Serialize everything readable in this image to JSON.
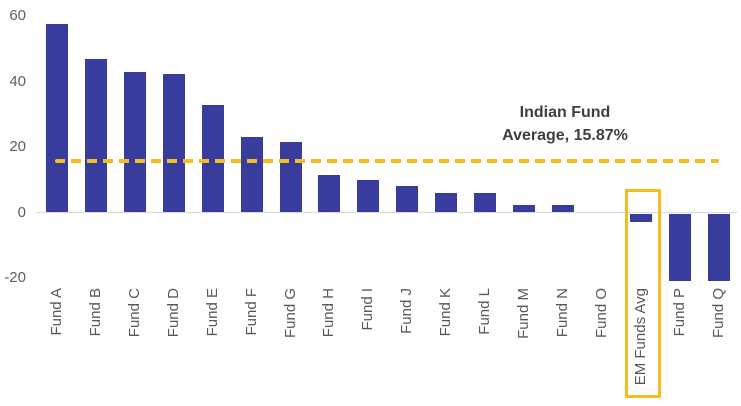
{
  "chart_data": {
    "type": "bar",
    "categories": [
      "Fund A",
      "Fund B",
      "Fund C",
      "Fund D",
      "Fund E",
      "Fund F",
      "Fund G",
      "Fund H",
      "Fund I",
      "Fund J",
      "Fund K",
      "Fund L",
      "Fund M",
      "Fund N",
      "Fund O",
      "EM Funds Avg",
      "Fund P",
      "Fund Q"
    ],
    "values": [
      57.5,
      47,
      43,
      42.5,
      33,
      23,
      21.5,
      11.5,
      10,
      8,
      6,
      6,
      2.4,
      2.3,
      0,
      -2.5,
      -20.5,
      -20.5
    ],
    "title": "",
    "xlabel": "",
    "ylabel": "",
    "ylim": [
      -20,
      60
    ],
    "yticks": [
      60,
      40,
      20,
      0,
      -20
    ],
    "ytick_labels": [
      "60",
      "40",
      "20",
      "0",
      "-20"
    ],
    "grid": false,
    "legend": "none",
    "bar_color": "#383c9c",
    "reference_line": {
      "value": 15.87,
      "style": "dashed",
      "color": "#f3bd1e",
      "label": "Indian Fund Average, 15.87%"
    },
    "highlight": {
      "category": "EM Funds Avg",
      "box_color": "#f3bd1e"
    }
  },
  "annotation": {
    "line1": "Indian Fund",
    "line2": "Average, 15.87%"
  },
  "colors": {
    "bar": "#383c9c",
    "accent_gold": "#f3bd1e",
    "axis_line": "#d9d9d9",
    "axis_text": "#595959",
    "annotation_text": "#3f3f3f",
    "background": "#ffffff"
  }
}
